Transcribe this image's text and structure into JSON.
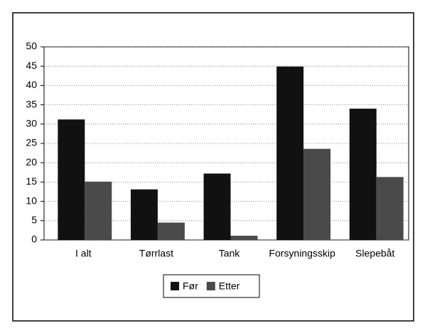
{
  "chart_data": {
    "type": "bar",
    "categories": [
      "I alt",
      "Tørrlast",
      "Tank",
      "Forsyningsskip",
      "Slepebåt"
    ],
    "series": [
      {
        "name": "Før",
        "color": "#111111",
        "values": [
          31.2,
          13.1,
          17.2,
          44.9,
          34.0
        ]
      },
      {
        "name": "Etter",
        "color": "#4a4a4a",
        "values": [
          15.1,
          4.5,
          1.1,
          23.6,
          16.3
        ]
      }
    ],
    "ylim": [
      0,
      50
    ],
    "yticks": [
      0,
      5,
      10,
      15,
      20,
      25,
      30,
      35,
      40,
      45,
      50
    ],
    "grid": true,
    "legend": "bottom"
  }
}
